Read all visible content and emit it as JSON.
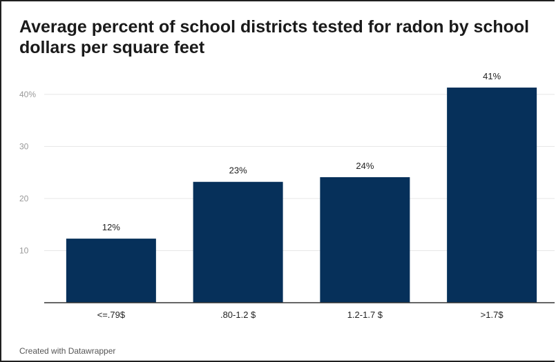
{
  "header": {
    "title": "Average percent of school districts tested for radon by school dollars per square feet"
  },
  "footer": {
    "credit": "Created with Datawrapper"
  },
  "colors": {
    "bar": "#06305a",
    "grid": "#e6e6e6",
    "baseline": "#333333",
    "tick_text": "#999999",
    "label_text": "#222222"
  },
  "chart_data": {
    "type": "bar",
    "title": "Average percent of school districts tested for radon by school dollars per square feet",
    "xlabel": "",
    "ylabel": "",
    "categories": [
      "<=.79$",
      ".80-1.2 $",
      "1.2-1.7 $",
      ">1.7$"
    ],
    "values": [
      12.3,
      23.2,
      24.1,
      41.3
    ],
    "data_labels": [
      "12%",
      "23%",
      "24%",
      "41%"
    ],
    "yticks": [
      10,
      20,
      30,
      40
    ],
    "ytick_labels": [
      "10",
      "20",
      "30",
      "40%"
    ],
    "ylim": [
      0,
      41.3
    ],
    "grid": true,
    "legend": "none"
  }
}
